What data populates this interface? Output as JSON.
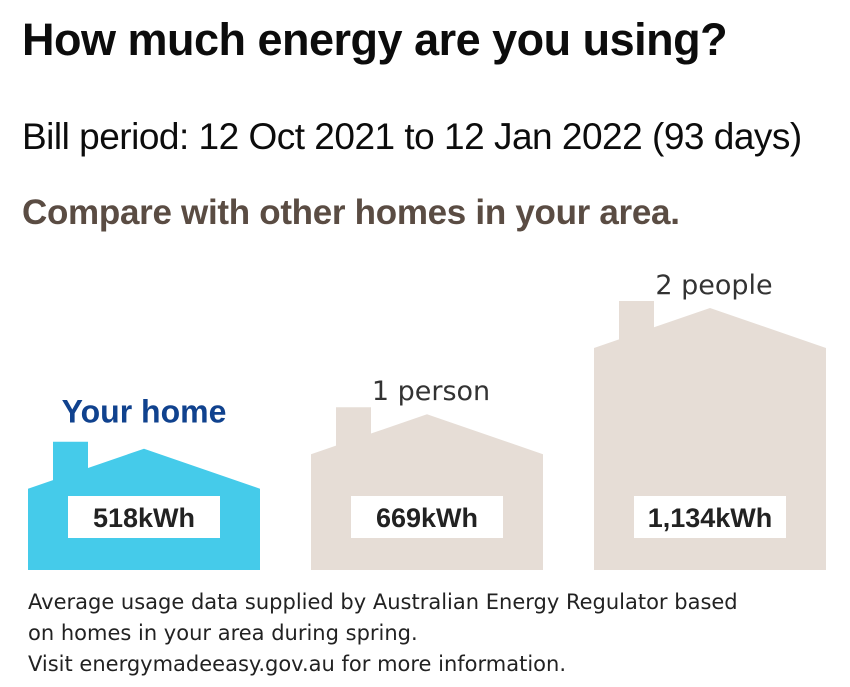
{
  "header": {
    "title": "How much energy are you using?",
    "bill_period": "Bill period: 12 Oct 2021 to 12 Jan 2022 (93 days)",
    "compare": "Compare with other homes in your area."
  },
  "chart_data": {
    "type": "bar",
    "categories": [
      "Your home",
      "1 person",
      "2 people"
    ],
    "values": [
      518,
      669,
      1134
    ],
    "value_labels": [
      "518kWh",
      "669kWh",
      "1,134kWh"
    ],
    "unit": "kWh",
    "colors": [
      "#45cbea",
      "#e6ddd6",
      "#e6ddd6"
    ],
    "label_colors": [
      "#10428e",
      "#333333",
      "#333333"
    ]
  },
  "footnote": {
    "line1": "Average usage data supplied by Australian Energy Regulator based",
    "line2": "on homes in your area during spring.",
    "line3": "Visit energymadeeasy.gov.au for more information."
  }
}
